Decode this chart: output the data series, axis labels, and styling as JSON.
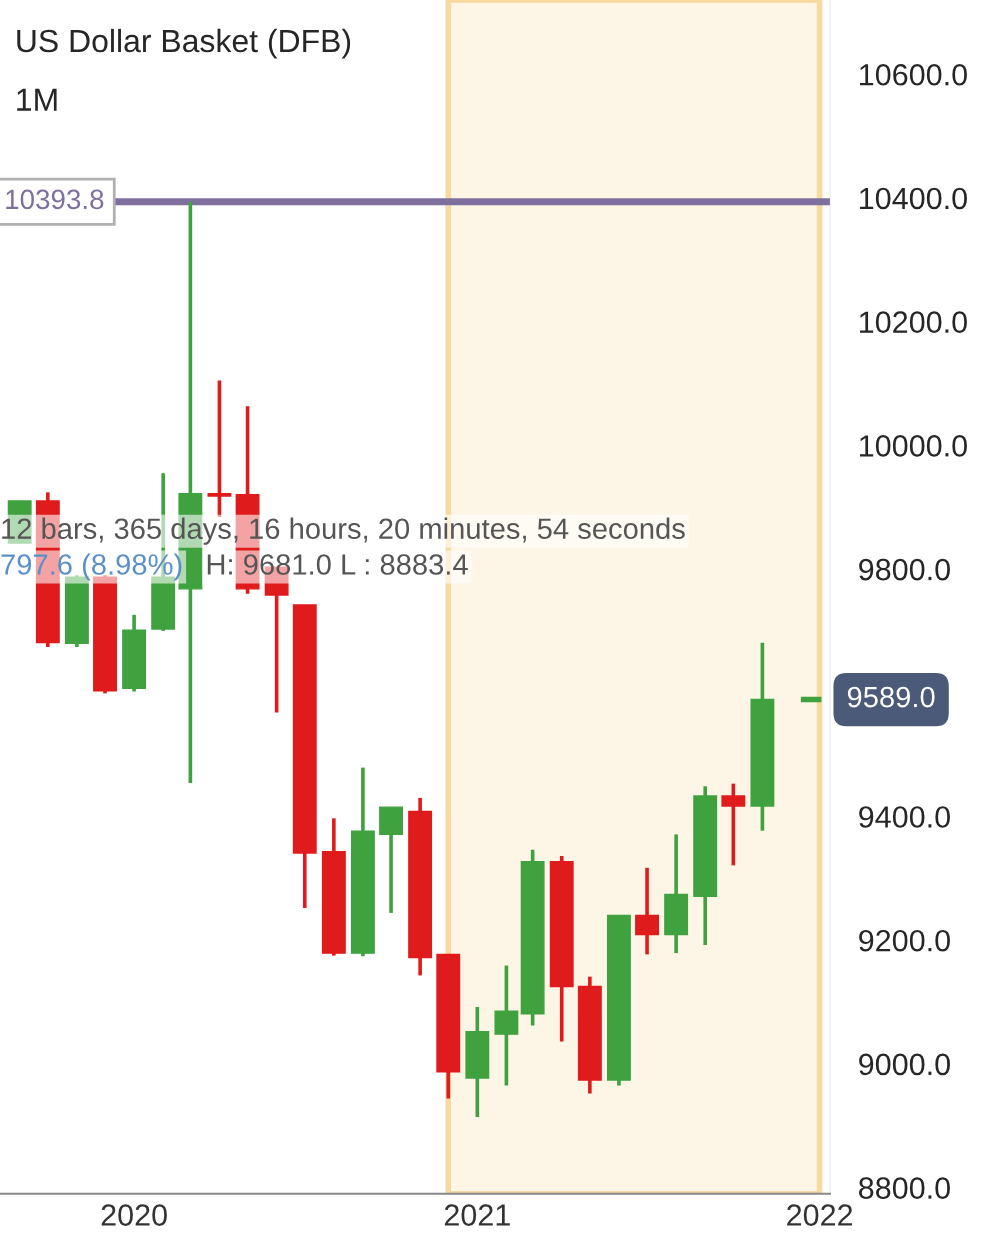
{
  "chart_data": {
    "type": "candlestick",
    "title": "US Dollar Basket (DFB)",
    "subtitle": "1M",
    "x": [
      "2019-09",
      "2019-10",
      "2019-11",
      "2019-12",
      "2020-01",
      "2020-02",
      "2020-03",
      "2020-04",
      "2020-05",
      "2020-06",
      "2020-07",
      "2020-08",
      "2020-09",
      "2020-10",
      "2020-11",
      "2020-12",
      "2021-01",
      "2021-02",
      "2021-03",
      "2021-04",
      "2021-05",
      "2021-06",
      "2021-07",
      "2021-08",
      "2021-09",
      "2021-10",
      "2021-11"
    ],
    "ohlc": [
      [
        9842,
        9910,
        9842,
        9910
      ],
      [
        9910,
        9924,
        9674,
        9681
      ],
      [
        9680,
        9790,
        9674,
        9787
      ],
      [
        9787,
        9790,
        9599,
        9603
      ],
      [
        9607,
        9726,
        9602,
        9701
      ],
      [
        9703,
        9955,
        9700,
        9787
      ],
      [
        9768,
        10393.8,
        9454,
        9922
      ],
      [
        9922,
        10105,
        9884,
        9918
      ],
      [
        9920,
        10063,
        9760,
        9768
      ],
      [
        9803,
        9803,
        9568,
        9758
      ],
      [
        9742,
        9742,
        9252,
        9341
      ],
      [
        9343,
        9397,
        9175,
        9179
      ],
      [
        9179,
        9479,
        9174,
        9376
      ],
      [
        9371,
        9415,
        9244,
        9415
      ],
      [
        9408,
        9430,
        9143,
        9172
      ],
      [
        9177,
        9177,
        8944,
        8987
      ],
      [
        8977,
        9092,
        8914,
        9052
      ],
      [
        9048,
        9159,
        8965,
        9085
      ],
      [
        9081,
        9346,
        9062,
        9327
      ],
      [
        9327,
        9336,
        9036,
        9125
      ],
      [
        9125,
        9141,
        8952,
        8974
      ],
      [
        8974,
        9240,
        8965,
        9240
      ],
      [
        9240,
        9317,
        9177,
        9209
      ],
      [
        9209,
        9371,
        9179,
        9274
      ],
      [
        9271,
        9449,
        9192,
        9433
      ],
      [
        9433,
        9453,
        9321,
        9417
      ],
      [
        9417,
        9681,
        9377,
        9589
      ]
    ],
    "colors": [
      "#3fa23f",
      "#e01b1b",
      "#3fa23f",
      "#e01b1b",
      "#3fa23f",
      "#3fa23f",
      "#3fa23f",
      "#e01b1b",
      "#e01b1b",
      "#e01b1b",
      "#e01b1b",
      "#e01b1b",
      "#3fa23f",
      "#3fa23f",
      "#e01b1b",
      "#e01b1b",
      "#3fa23f",
      "#3fa23f",
      "#3fa23f",
      "#e01b1b",
      "#e01b1b",
      "#3fa23f",
      "#e01b1b",
      "#3fa23f",
      "#3fa23f",
      "#e01b1b",
      "#3fa23f"
    ],
    "xlim": [
      "2019-08-11",
      "2022-01-12"
    ],
    "xticks": [
      "2020",
      "2021",
      "2022"
    ],
    "ylim": [
      8790,
      10720
    ],
    "yticks": [
      {
        "value": 8800,
        "label": "8800.0"
      },
      {
        "value": 9000,
        "label": "9000.0"
      },
      {
        "value": 9200,
        "label": "9200.0"
      },
      {
        "value": 9400,
        "label": "9400.0"
      },
      {
        "value": 9800,
        "label": "9800.0"
      },
      {
        "value": 10000,
        "label": "10000.0"
      },
      {
        "value": 10200,
        "label": "10200.0"
      },
      {
        "value": 10400,
        "label": "10400.0"
      },
      {
        "value": 10600,
        "label": "10600.0"
      }
    ],
    "ref_lines": [
      {
        "axis": "y",
        "value": 10393.8,
        "label": "10393.8",
        "color": "#7e6f9e",
        "line_style": "solid"
      },
      {
        "axis": "y",
        "value": 9589,
        "label": "9589.0",
        "color": "#3fa23f",
        "line_style": "dashed"
      }
    ],
    "bands": [
      {
        "axis": "x",
        "from": "2020-12",
        "to": "2022-01",
        "color": "#fdf5e6"
      }
    ],
    "annotations": [
      "12 bars, 365 days, 16 hours, 20 minutes, 54 seconds",
      "797.6 (8.98%)",
      "H: 9681.0 L : 8883.4"
    ],
    "grid": false
  }
}
